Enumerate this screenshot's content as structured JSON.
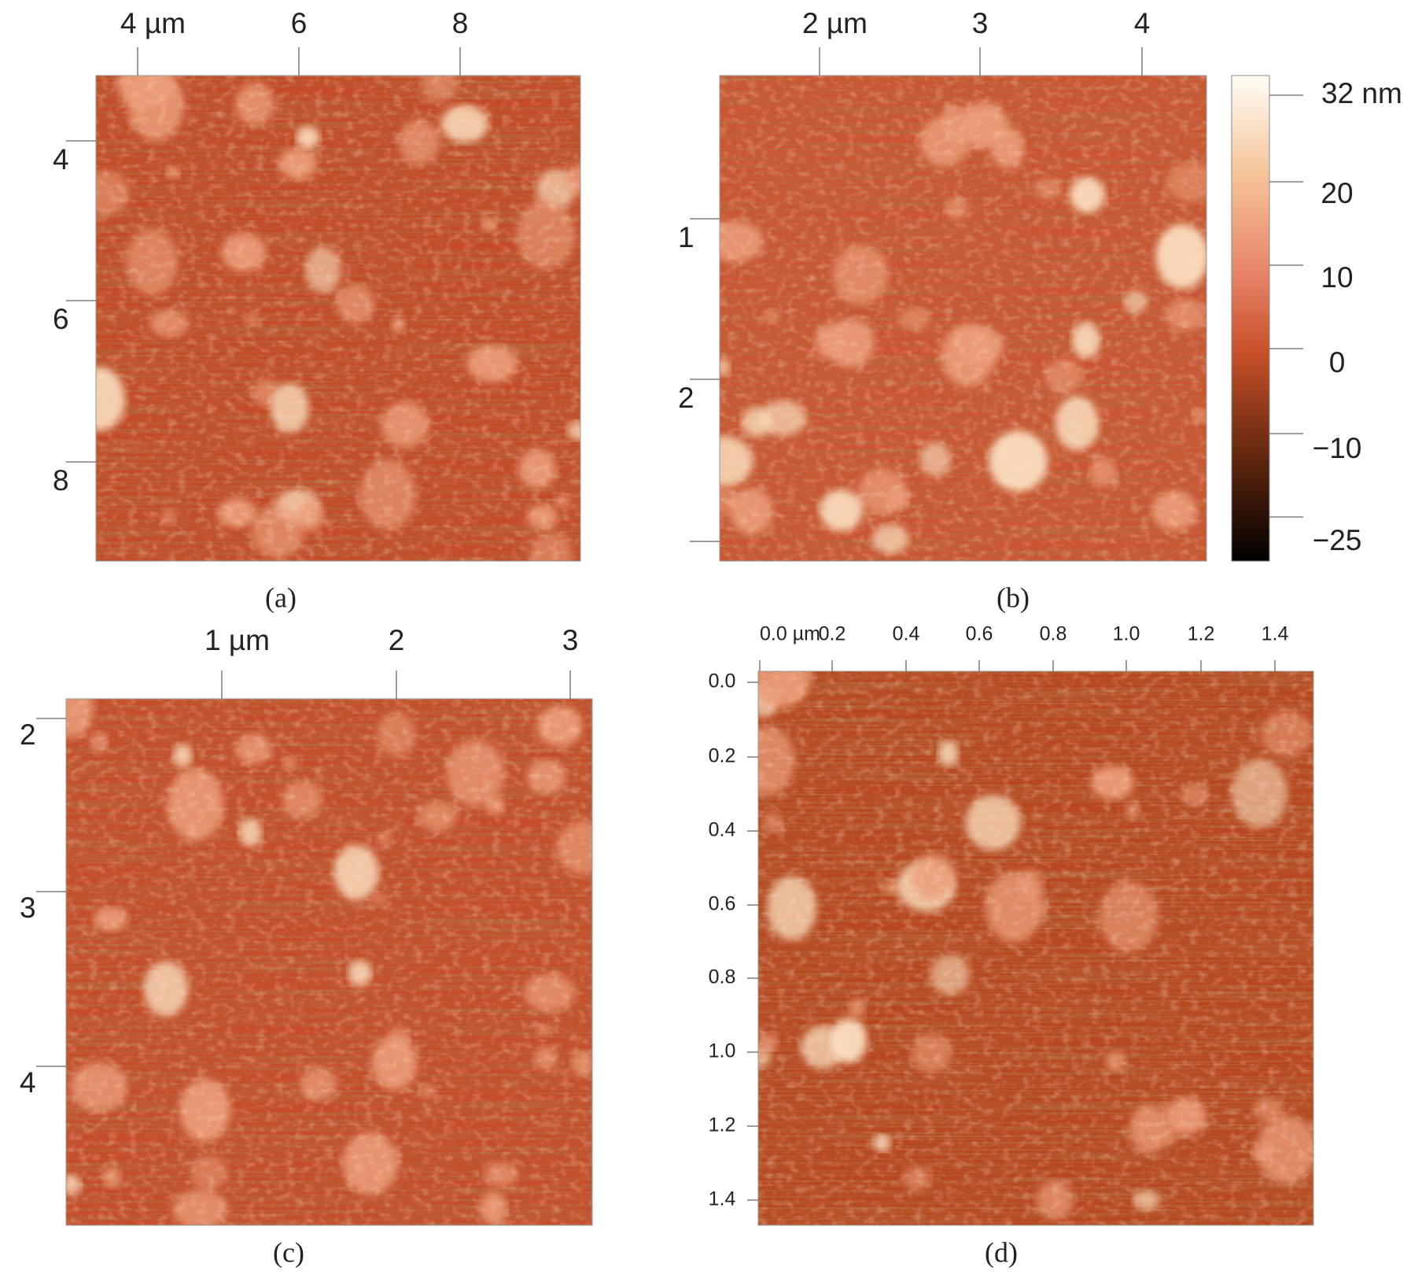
{
  "panels": [
    {
      "caption": "(a)",
      "x_ticks": [
        "4 µm",
        "6",
        "8"
      ],
      "y_ticks": [
        "4",
        "6",
        "8"
      ]
    },
    {
      "caption": "(b)",
      "x_ticks": [
        "2 µm",
        "3",
        "4"
      ],
      "y_ticks": [
        "1",
        "2"
      ]
    },
    {
      "caption": "(c)",
      "x_ticks": [
        "1 µm",
        "2",
        "3"
      ],
      "y_ticks": [
        "2",
        "3",
        "4"
      ]
    },
    {
      "caption": "(d)",
      "x_ticks": [
        "0.0 µm",
        "0.2",
        "0.4",
        "0.6",
        "0.8",
        "1.0",
        "1.2",
        "1.4"
      ],
      "y_ticks": [
        "0.0",
        "0.2",
        "0.4",
        "0.6",
        "0.8",
        "1.0",
        "1.2",
        "1.4"
      ]
    }
  ],
  "colorbar": {
    "ticks": [
      "32 nm",
      "20",
      "10",
      "0",
      "−10",
      "−25"
    ]
  }
}
